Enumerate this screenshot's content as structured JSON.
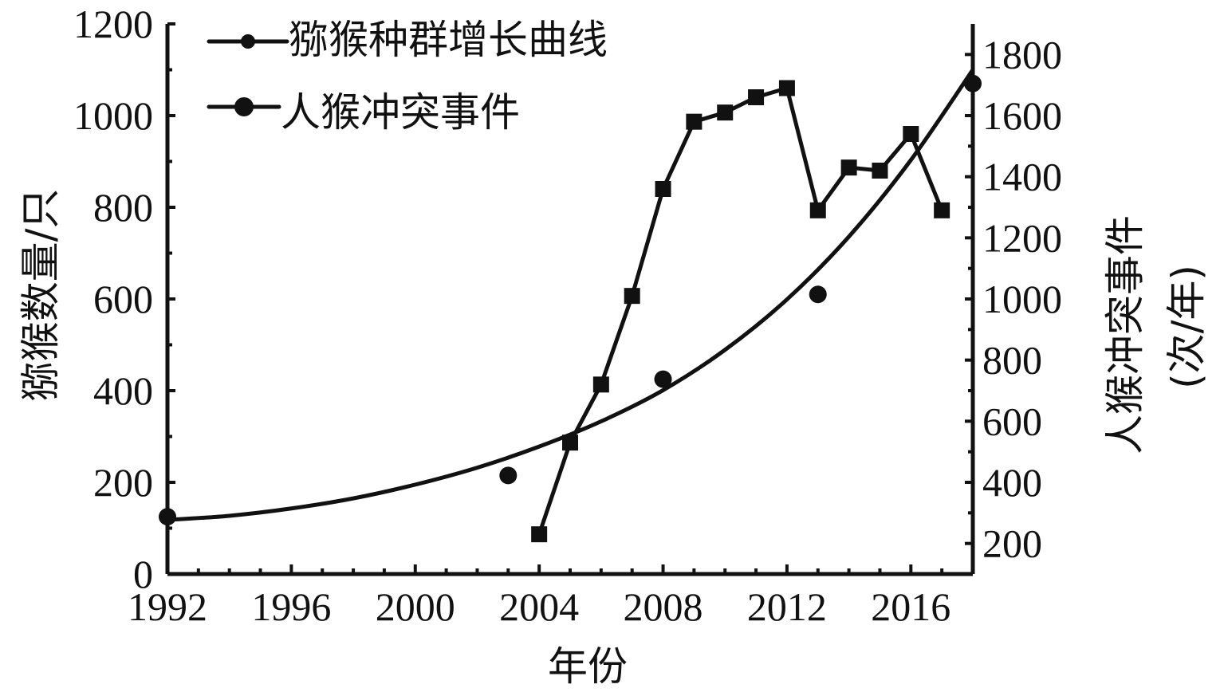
{
  "chart_data": {
    "type": "line",
    "xlabel": "年份",
    "ylabel_left": "猕猴数量/只",
    "ylabel_right_line1": "人猴冲突事件",
    "ylabel_right_line2": "(次/年)",
    "xlim": [
      1992,
      2018
    ],
    "x_ticks": [
      1992,
      1996,
      2000,
      2004,
      2008,
      2012,
      2016
    ],
    "ylim_left": [
      0,
      1200
    ],
    "y_ticks_left": [
      0,
      200,
      400,
      600,
      800,
      1000,
      1200
    ],
    "ylim_right": [
      100,
      1900
    ],
    "y_ticks_right": [
      200,
      400,
      600,
      800,
      1000,
      1200,
      1400,
      1600,
      1800
    ],
    "legend_position": "top-left",
    "grid": false,
    "series": [
      {
        "name": "猕猴种群增长曲线",
        "axis": "left",
        "style": "curve-with-points",
        "curve_x": [
          1992,
          1994,
          1996,
          1998,
          2000,
          2002,
          2004,
          2006,
          2008,
          2010,
          2012,
          2014,
          2016,
          2018
        ],
        "curve_y": [
          118,
          127,
          143,
          165,
          195,
          232,
          278,
          333,
          401,
          489,
          599,
          736,
          903,
          1100
        ],
        "points_x": [
          1992,
          2003,
          2008,
          2013,
          2018
        ],
        "points_y": [
          125,
          215,
          425,
          610,
          1070
        ]
      },
      {
        "name": "人猴冲突事件",
        "axis": "right",
        "style": "line-with-markers",
        "x": [
          2004,
          2005,
          2006,
          2007,
          2008,
          2009,
          2010,
          2011,
          2012,
          2013,
          2014,
          2015,
          2016,
          2017
        ],
        "y": [
          230,
          530,
          720,
          1010,
          1360,
          1580,
          1610,
          1660,
          1690,
          1290,
          1430,
          1420,
          1540,
          1290
        ]
      }
    ]
  }
}
